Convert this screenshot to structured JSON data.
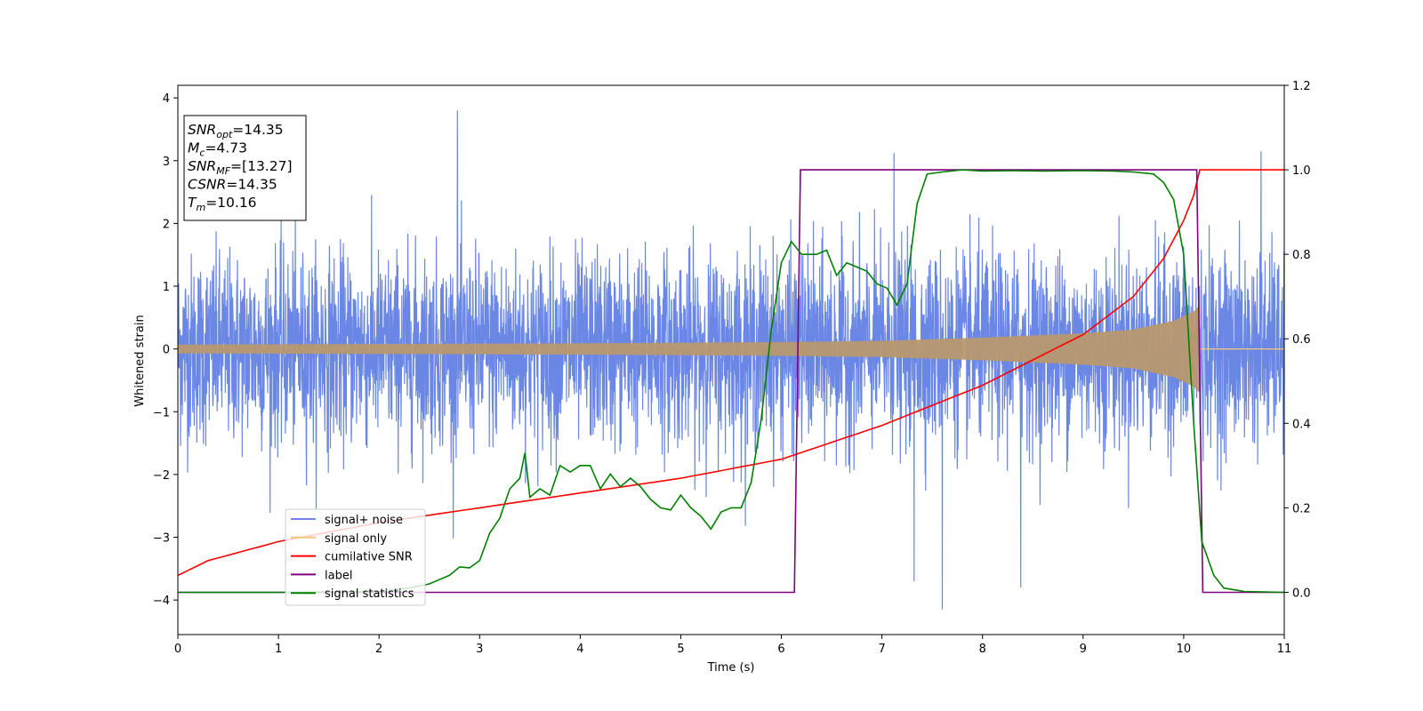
{
  "chart_data": {
    "type": "line",
    "xlabel": "Time (s)",
    "ylabel": "Whitened strain",
    "xlim": [
      0,
      11
    ],
    "ylim_left": [
      -4.55,
      4.2
    ],
    "ylim_right": [
      -0.1,
      1.2
    ],
    "xticks": [
      0,
      1,
      2,
      3,
      4,
      5,
      6,
      7,
      8,
      9,
      10,
      11
    ],
    "yticks_left": [
      -4,
      -3,
      -2,
      -1,
      0,
      1,
      2,
      3,
      4
    ],
    "yticks_right": [
      0.0,
      0.2,
      0.4,
      0.6,
      0.8,
      1.0,
      1.2
    ],
    "grid": false,
    "legend_position": "lower-left",
    "series": [
      {
        "name": "signal+ noise",
        "axis": "left",
        "color": "#6a87e6",
        "description": "dense noise band, approx mean 0, std 0.75, peaks to about 3.8 and -4.15",
        "envelope_peaks": [
          [
            2.78,
            3.8
          ],
          [
            7.6,
            -4.15
          ],
          [
            7.32,
            -3.7
          ],
          [
            8.38,
            -3.8
          ],
          [
            10.77,
            3.15
          ],
          [
            7.12,
            3.12
          ]
        ]
      },
      {
        "name": "signal only",
        "axis": "left",
        "color": "#f5c77e",
        "amplitude_envelope": [
          [
            0,
            0.07
          ],
          [
            2,
            0.08
          ],
          [
            4,
            0.09
          ],
          [
            6,
            0.11
          ],
          [
            7,
            0.13
          ],
          [
            8,
            0.18
          ],
          [
            9,
            0.25
          ],
          [
            9.5,
            0.31
          ],
          [
            9.9,
            0.45
          ],
          [
            10.1,
            0.6
          ],
          [
            10.16,
            0.7
          ],
          [
            10.17,
            0.0
          ],
          [
            11,
            0.0
          ]
        ]
      },
      {
        "name": "cumilative SNR",
        "axis": "right",
        "color": "#ff0000",
        "points": [
          [
            0,
            0.04
          ],
          [
            0.3,
            0.075
          ],
          [
            1,
            0.12
          ],
          [
            2,
            0.165
          ],
          [
            3,
            0.2
          ],
          [
            4,
            0.235
          ],
          [
            5,
            0.27
          ],
          [
            6,
            0.315
          ],
          [
            7,
            0.395
          ],
          [
            8,
            0.49
          ],
          [
            9,
            0.61
          ],
          [
            9.5,
            0.7
          ],
          [
            9.8,
            0.79
          ],
          [
            10.0,
            0.88
          ],
          [
            10.1,
            0.94
          ],
          [
            10.16,
            1.0
          ],
          [
            11,
            1.0
          ]
        ]
      },
      {
        "name": "label",
        "axis": "right",
        "color": "#800080",
        "points": [
          [
            0,
            0.0
          ],
          [
            6.13,
            0.0
          ],
          [
            6.19,
            1.0
          ],
          [
            10.13,
            1.0
          ],
          [
            10.19,
            0.0
          ],
          [
            11,
            0.0
          ]
        ]
      },
      {
        "name": "signal statistics",
        "axis": "right",
        "color": "#008000",
        "points": [
          [
            0,
            0.0
          ],
          [
            1,
            0.0
          ],
          [
            2,
            0.002
          ],
          [
            2.3,
            0.01
          ],
          [
            2.5,
            0.02
          ],
          [
            2.6,
            0.03
          ],
          [
            2.7,
            0.04
          ],
          [
            2.8,
            0.06
          ],
          [
            2.9,
            0.058
          ],
          [
            3.0,
            0.075
          ],
          [
            3.1,
            0.14
          ],
          [
            3.2,
            0.175
          ],
          [
            3.3,
            0.245
          ],
          [
            3.4,
            0.27
          ],
          [
            3.45,
            0.33
          ],
          [
            3.5,
            0.225
          ],
          [
            3.6,
            0.245
          ],
          [
            3.7,
            0.23
          ],
          [
            3.8,
            0.3
          ],
          [
            3.9,
            0.285
          ],
          [
            4.0,
            0.3
          ],
          [
            4.1,
            0.3
          ],
          [
            4.2,
            0.245
          ],
          [
            4.3,
            0.28
          ],
          [
            4.4,
            0.25
          ],
          [
            4.5,
            0.27
          ],
          [
            4.6,
            0.25
          ],
          [
            4.7,
            0.22
          ],
          [
            4.8,
            0.2
          ],
          [
            4.9,
            0.195
          ],
          [
            5.0,
            0.23
          ],
          [
            5.1,
            0.2
          ],
          [
            5.2,
            0.18
          ],
          [
            5.3,
            0.15
          ],
          [
            5.4,
            0.19
          ],
          [
            5.5,
            0.2
          ],
          [
            5.6,
            0.2
          ],
          [
            5.7,
            0.26
          ],
          [
            5.8,
            0.41
          ],
          [
            5.9,
            0.62
          ],
          [
            6.0,
            0.78
          ],
          [
            6.1,
            0.83
          ],
          [
            6.2,
            0.8
          ],
          [
            6.35,
            0.8
          ],
          [
            6.45,
            0.81
          ],
          [
            6.55,
            0.75
          ],
          [
            6.65,
            0.78
          ],
          [
            6.75,
            0.77
          ],
          [
            6.85,
            0.76
          ],
          [
            6.95,
            0.73
          ],
          [
            7.05,
            0.72
          ],
          [
            7.15,
            0.68
          ],
          [
            7.25,
            0.73
          ],
          [
            7.35,
            0.92
          ],
          [
            7.45,
            0.99
          ],
          [
            7.6,
            0.995
          ],
          [
            7.8,
            1.0
          ],
          [
            8.0,
            0.997
          ],
          [
            8.3,
            0.998
          ],
          [
            8.6,
            0.997
          ],
          [
            9.0,
            0.998
          ],
          [
            9.3,
            0.997
          ],
          [
            9.5,
            0.995
          ],
          [
            9.7,
            0.99
          ],
          [
            9.8,
            0.97
          ],
          [
            9.9,
            0.93
          ],
          [
            10.0,
            0.8
          ],
          [
            10.1,
            0.4
          ],
          [
            10.18,
            0.12
          ],
          [
            10.3,
            0.04
          ],
          [
            10.4,
            0.01
          ],
          [
            10.6,
            0.002
          ],
          [
            11,
            0.0
          ]
        ]
      }
    ],
    "annotation": {
      "lines": [
        {
          "main": "SNR",
          "sub": "opt",
          "value": "=14.35"
        },
        {
          "main": "M",
          "sub": "c",
          "value": "=4.73"
        },
        {
          "main": "SNR",
          "sub": "MF",
          "value": "=[13.27]"
        },
        {
          "main": "CSNR",
          "sub": "",
          "value": "=14.35"
        },
        {
          "main": "T",
          "sub": "m",
          "value": "=10.16"
        }
      ]
    }
  }
}
